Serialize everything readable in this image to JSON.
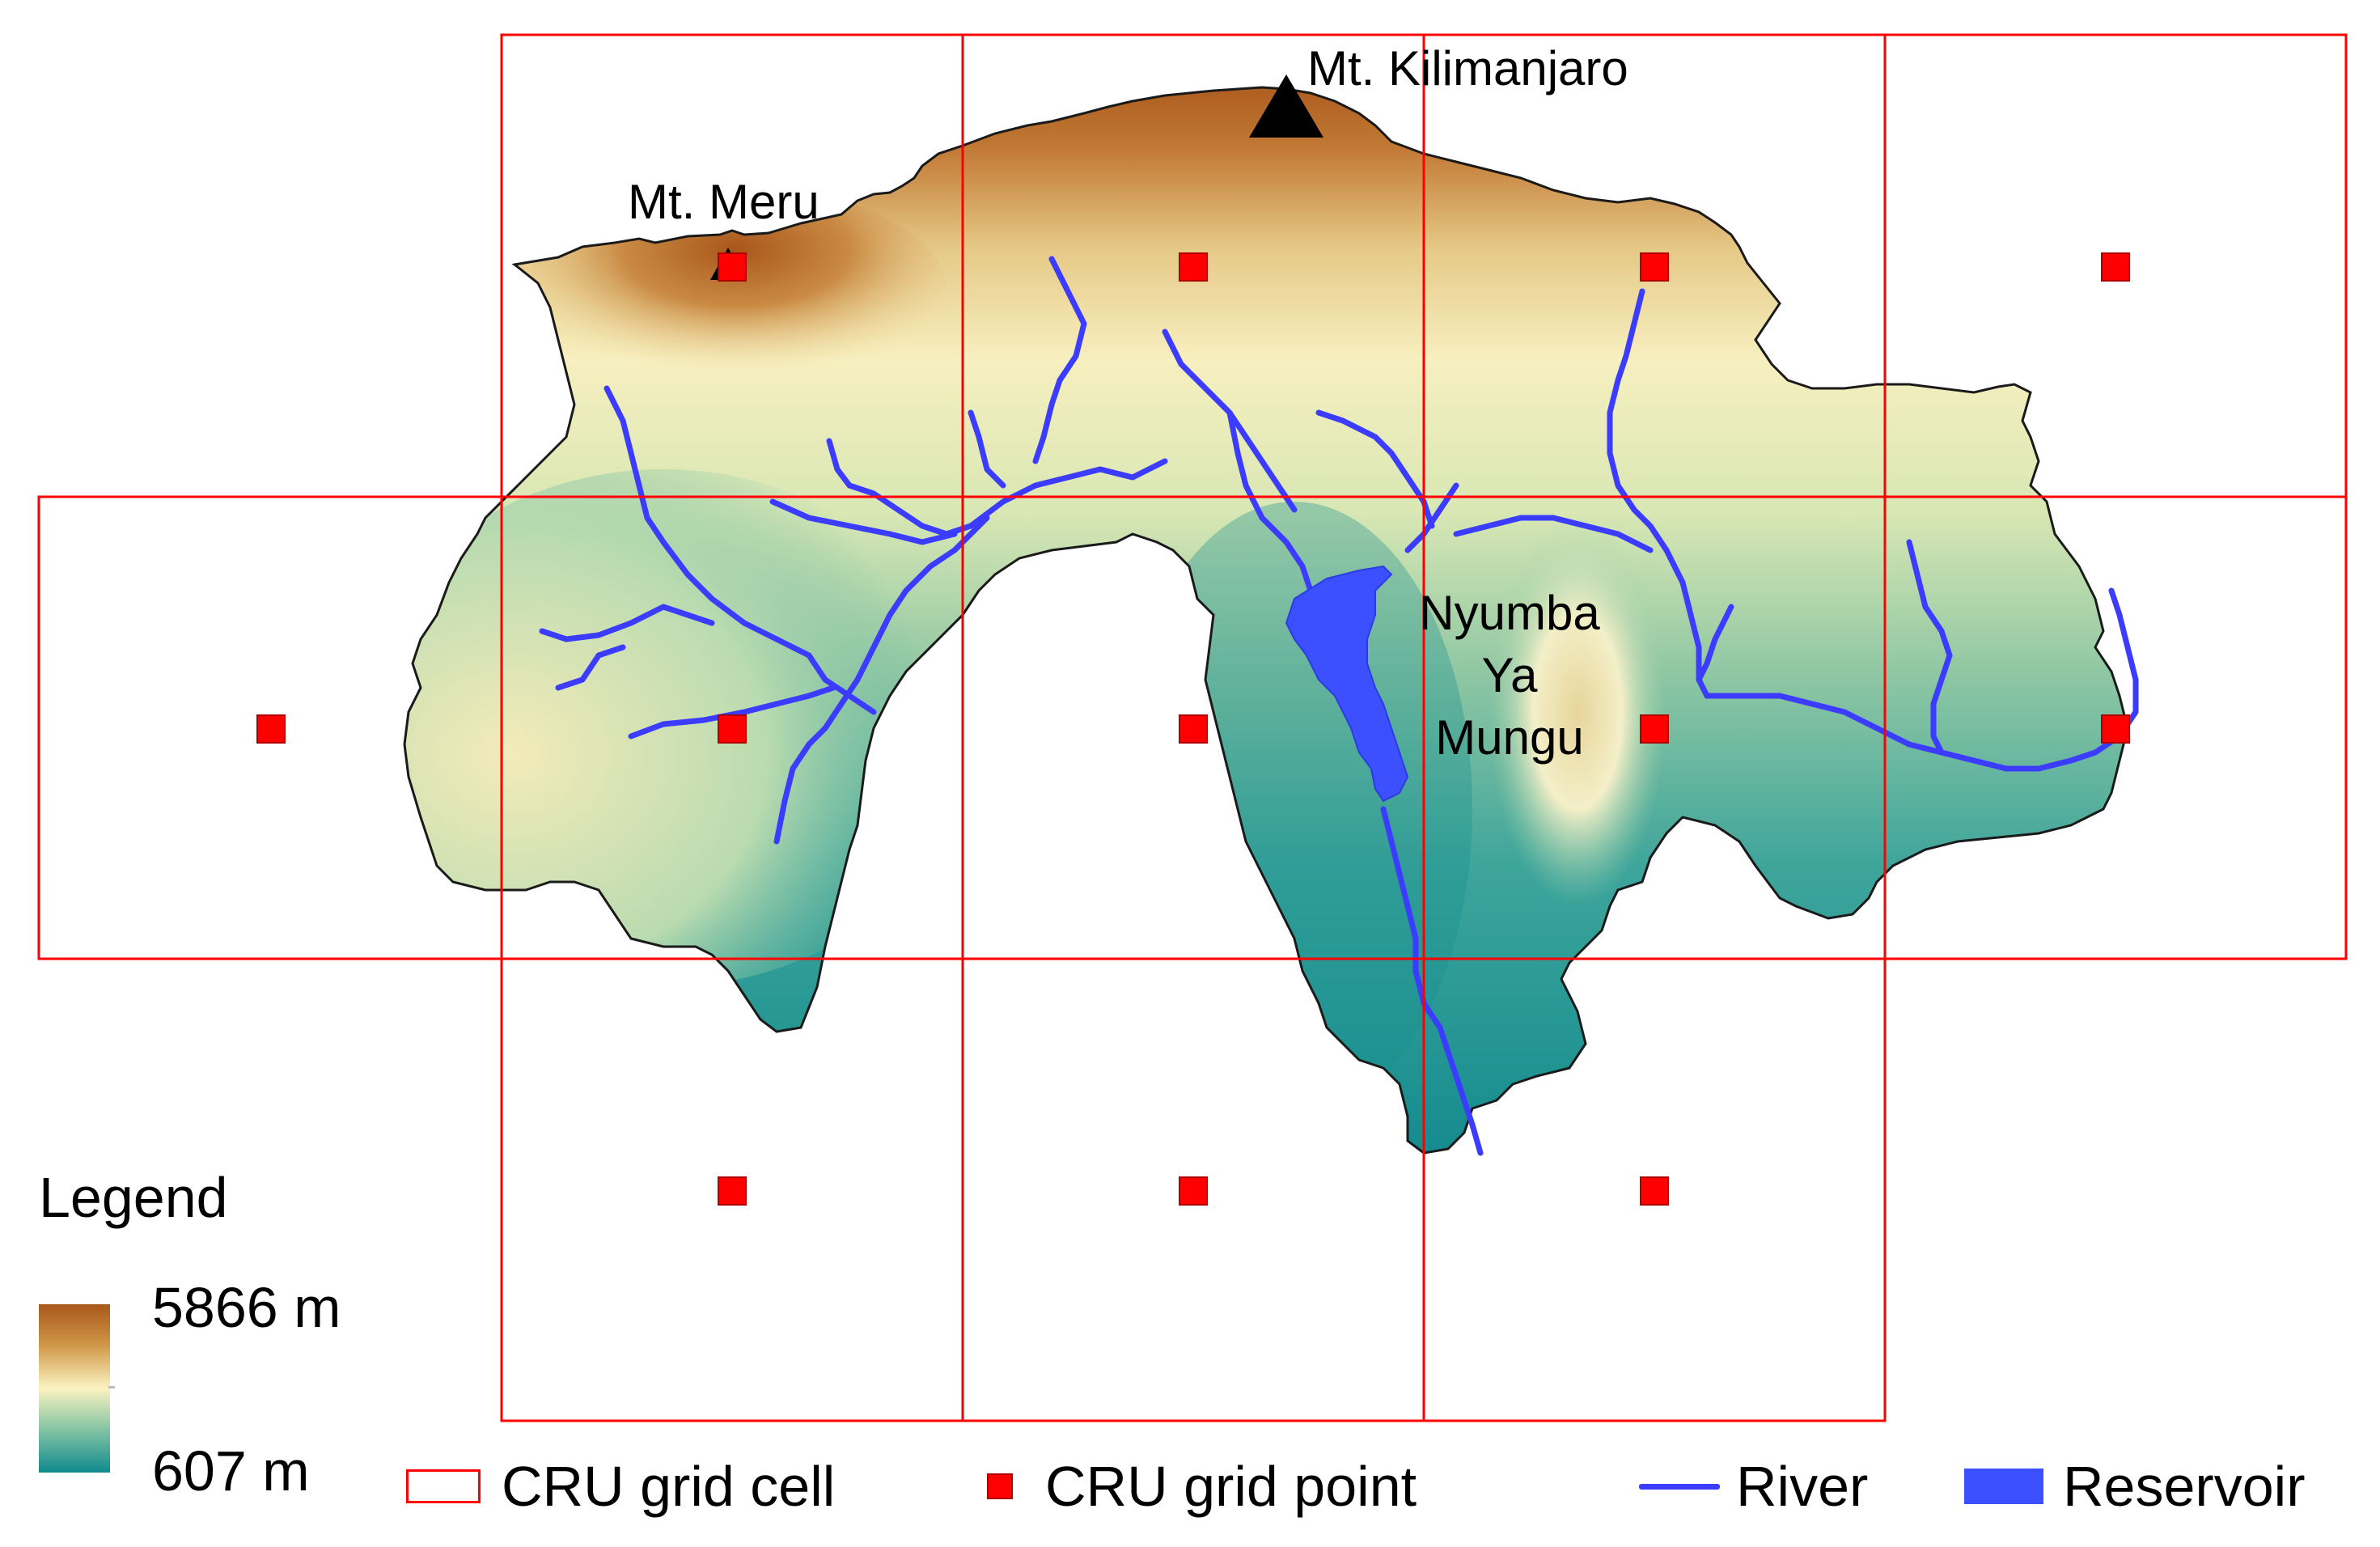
{
  "labels": {
    "kilimanjaro": "Mt. Kilimanjaro",
    "meru": "Mt. Meru",
    "nym_line1": "Nyumba",
    "nym_line2": "Ya",
    "nym_line3": "Mungu"
  },
  "legend": {
    "title": "Legend",
    "elevation_max": "5866 m",
    "elevation_min": "607 m",
    "items": {
      "grid_cell": "CRU grid cell",
      "grid_point": "CRU grid point",
      "river": "River",
      "reservoir": "Reservoir"
    }
  },
  "colors": {
    "grid": "#ff0000",
    "river": "#3c3cff",
    "reservoir": "#3c50ff",
    "elevation_high": "#a9571b",
    "elevation_mid": "#fbf2c2",
    "elevation_low": "#0f8a8e"
  },
  "icons": {
    "peak": "triangle-peak-icon",
    "grid_point": "red-square-icon"
  }
}
